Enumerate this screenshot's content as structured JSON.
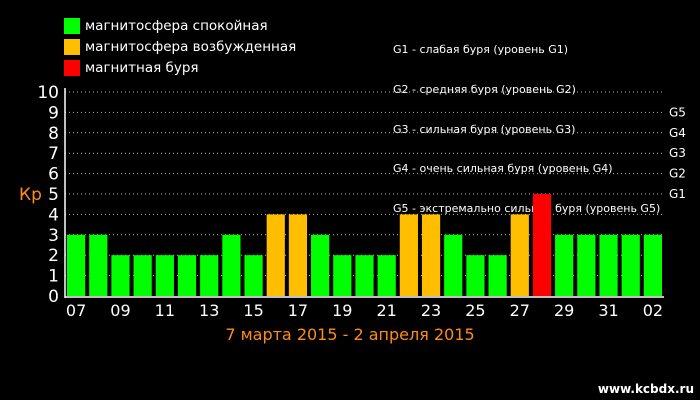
{
  "legend": [
    {
      "label": "магнитосфера спокойная",
      "color": "#00ff00"
    },
    {
      "label": "магнитосфера возбужденная",
      "color": "#ffbf00"
    },
    {
      "label": "магнитная буря",
      "color": "#ff0000"
    }
  ],
  "storm_levels_text": [
    "G1 - слабая буря (уровень G1)",
    "G2 - средняя буря (уровень G2)",
    "G3 - сильная буря (уровень G3)",
    "G4 - очень сильная буря (уровень G4)",
    "G5 - экстремально сильная буря (уровень G5)"
  ],
  "watermark": "www.kcbdx.ru",
  "chart_data": {
    "type": "bar",
    "xlabel": "7 марта 2015 - 2 апреля 2015",
    "ylabel": "Кр",
    "ylim": [
      0,
      10
    ],
    "yticks": [
      "0",
      "1",
      "2",
      "3",
      "4",
      "5",
      "6",
      "7",
      "8",
      "9",
      "10"
    ],
    "right_axis_labels": [
      {
        "value": 5,
        "label": "G1"
      },
      {
        "value": 6,
        "label": "G2"
      },
      {
        "value": 7,
        "label": "G3"
      },
      {
        "value": 8,
        "label": "G4"
      },
      {
        "value": 9,
        "label": "G5"
      }
    ],
    "xtick_labels": [
      "07",
      "09",
      "11",
      "13",
      "15",
      "17",
      "19",
      "21",
      "23",
      "25",
      "27",
      "29",
      "31",
      "02"
    ],
    "grid": true,
    "values": [
      3,
      3,
      2,
      2,
      2,
      2,
      2,
      3,
      2,
      4,
      4,
      3,
      2,
      2,
      2,
      4,
      4,
      3,
      2,
      2,
      4,
      5,
      3,
      3,
      3,
      3,
      3
    ],
    "colors": {
      "3": "#00ff00",
      "2": "#00ff00",
      "4": "#ffbf00",
      "5": "#ff0000"
    }
  }
}
